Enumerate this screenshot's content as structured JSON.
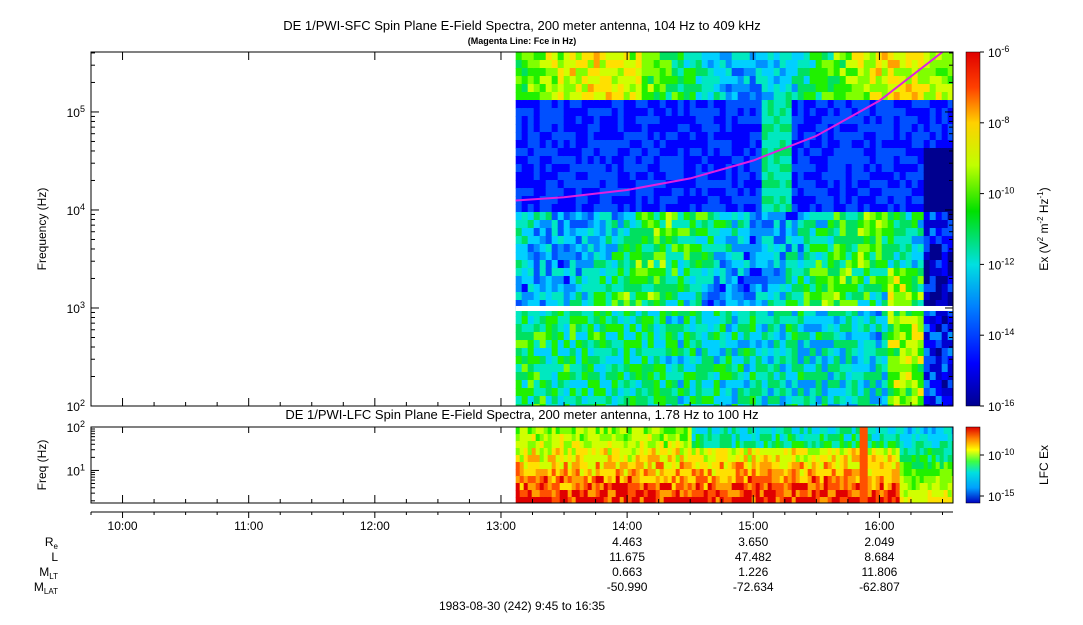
{
  "chart_data": [
    {
      "type": "heatmap",
      "title": "DE 1/PWI-SFC  Spin Plane E-Field Spectra, 200 meter antenna, 104 Hz to 409 kHz",
      "subtitle": "(Magenta Line: Fce in Hz)",
      "ylabel": "Frequency (Hz)",
      "yscale": "log",
      "ylim": [
        100,
        409000
      ],
      "yticks": [
        "10^2",
        "10^3",
        "10^4",
        "10^5"
      ],
      "colorbar": {
        "label": "Ex (V^2 m^-2 Hz^-1)",
        "scale": "log",
        "range": [
          1e-16,
          1e-06
        ],
        "ticks": [
          "10^-6",
          "10^-8",
          "10^-10",
          "10^-12",
          "10^-14",
          "10^-16"
        ]
      },
      "data_start": "13:07",
      "data_gap_hz": [
        1000,
        1000
      ],
      "fce_line": {
        "color": "#e020e0",
        "times": [
          "13:07",
          "13:30",
          "14:00",
          "14:30",
          "15:00",
          "15:30",
          "16:00",
          "16:30"
        ],
        "hz": [
          12500,
          13500,
          16000,
          21000,
          32000,
          57000,
          130000,
          409000
        ]
      }
    },
    {
      "type": "heatmap",
      "title": "DE 1/PWI-LFC  Spin Plane E-Field Spectra, 200 meter antenna, 1.78 Hz to 100 Hz",
      "ylabel": "Freq (Hz)",
      "yscale": "log",
      "ylim": [
        1.78,
        100
      ],
      "yticks": [
        "10^1",
        "10^2"
      ],
      "colorbar": {
        "label": "LFC Ex",
        "scale": "log",
        "ticks": [
          "10^-10",
          "10^-15"
        ]
      },
      "data_start": "13:07"
    }
  ],
  "time_axis": {
    "range": [
      "09:45",
      "16:35"
    ],
    "ticks": [
      "10:00",
      "11:00",
      "12:00",
      "13:00",
      "14:00",
      "15:00",
      "16:00"
    ]
  },
  "ephemeris": {
    "rows": [
      {
        "label": "R",
        "sub": "e",
        "values": [
          "4.463",
          "3.650",
          "2.049"
        ]
      },
      {
        "label": "L",
        "sub": "",
        "values": [
          "11.675",
          "47.482",
          "8.684"
        ]
      },
      {
        "label": "M",
        "sub": "LT",
        "values": [
          "0.663",
          "1.226",
          "11.806"
        ]
      },
      {
        "label": "M",
        "sub": "LAT",
        "values": [
          "-50.990",
          "-72.634",
          "-62.807"
        ]
      }
    ],
    "times": [
      "14:00",
      "15:00",
      "16:00"
    ]
  },
  "footer": "1983-08-30 (242) 9:45 to 16:35"
}
